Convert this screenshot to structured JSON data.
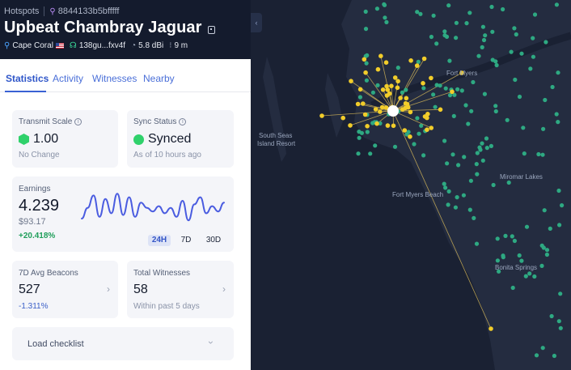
{
  "header": {
    "breadcrumb_root": "Hotspots",
    "hotspot_id": "8844133b5bfffff",
    "title": "Upbeat Chambray Jaguar",
    "location": "Cape Coral",
    "owner": "138gu...fxv4f",
    "gain": "5.8 dBi",
    "elevation": "9 m"
  },
  "tabs": [
    {
      "label": "Statistics",
      "active": true
    },
    {
      "label": "Activity",
      "active": false
    },
    {
      "label": "Witnesses",
      "active": false
    },
    {
      "label": "Nearby",
      "active": false
    }
  ],
  "transmit": {
    "label": "Transmit Scale",
    "value": "1.00",
    "sub": "No Change"
  },
  "sync": {
    "label": "Sync Status",
    "value": "Synced",
    "sub": "As of 10 hours ago"
  },
  "earnings": {
    "label": "Earnings",
    "value": "4.239",
    "usd": "$93.17",
    "change": "+20.418%",
    "ranges": [
      {
        "label": "24H",
        "active": true
      },
      {
        "label": "7D",
        "active": false
      },
      {
        "label": "30D",
        "active": false
      }
    ],
    "sparkline": [
      0.25,
      0.55,
      0.9,
      0.3,
      0.8,
      0.4,
      0.95,
      0.35,
      0.85,
      0.3,
      0.7,
      0.55,
      0.45,
      0.6,
      0.4,
      0.55,
      0.3,
      0.75,
      0.2,
      0.65,
      0.85,
      0.4,
      0.6,
      0.45,
      0.7
    ]
  },
  "beacons": {
    "label": "7D Avg Beacons",
    "value": "527",
    "change": "-1.311%"
  },
  "witnesses": {
    "label": "Total Witnesses",
    "value": "58",
    "sub": "Within past 5 days"
  },
  "checklist": {
    "label": "Load checklist"
  },
  "map": {
    "labels": [
      "Fort Myers",
      "South Seas",
      "Island Resort",
      "Fort Myers Beach",
      "Miromar Lakes",
      "Bonita Springs"
    ],
    "colors": {
      "land": "#222a3d",
      "water": "#1a2133",
      "hotspot": "#2ea982",
      "witness": "#f2cd2a",
      "link": "#e3c25a",
      "selected": "#ffffff"
    }
  },
  "icons": {
    "hotspot": "hotspot-icon",
    "location": "location-pin-icon",
    "owner": "owner-icon",
    "gain": "antenna-icon",
    "elevation": "elevation-icon",
    "copy": "copy-icon",
    "info": "info-icon",
    "chevron": "chevron-right-icon",
    "expand": "chevron-down-icon",
    "collapse": "chevron-left-icon"
  }
}
